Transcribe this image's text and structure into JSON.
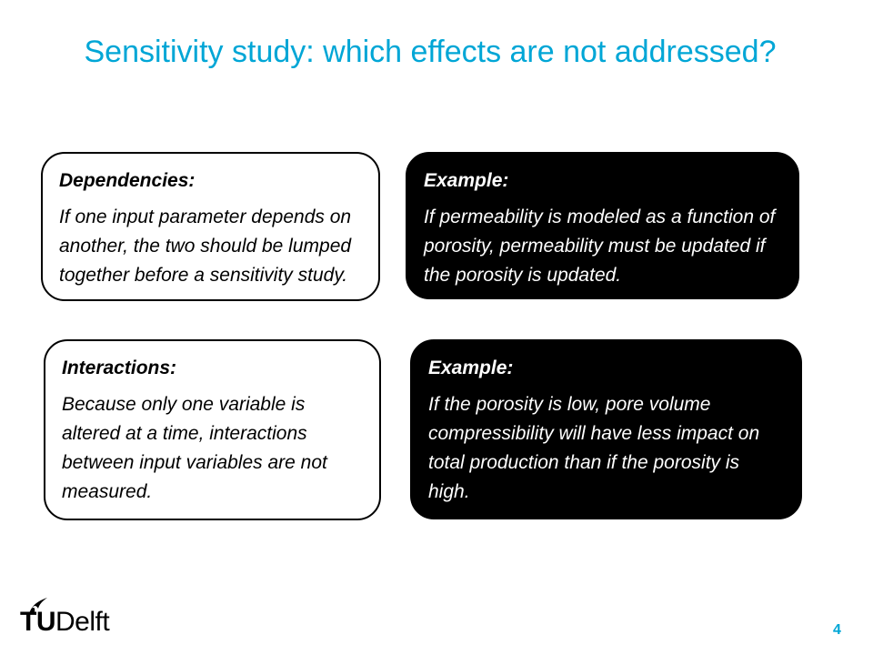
{
  "slide": {
    "title": "Sensitivity study: which effects are not addressed?",
    "page_number": "4",
    "accent_color": "#00a6d6"
  },
  "boxes": [
    {
      "heading": "Dependencies:",
      "body": "If one input parameter depends on another, the two should be lumped together before a sensitivity study.",
      "style": "light"
    },
    {
      "heading": "Example:",
      "body": "If permeability is modeled as a function of porosity, permeability must be updated if the porosity is updated.",
      "style": "dark"
    },
    {
      "heading": "Interactions:",
      "body": "Because only one variable is altered at a time, interactions between input variables are not measured.",
      "style": "light"
    },
    {
      "heading": "Example:",
      "body": "If the porosity is low, pore volume compressibility will have less impact on total production than if the porosity is high.",
      "style": "dark"
    }
  ],
  "logo": {
    "brand_tu": "TU",
    "brand_delft": "Delft",
    "icon": "flame-icon"
  }
}
